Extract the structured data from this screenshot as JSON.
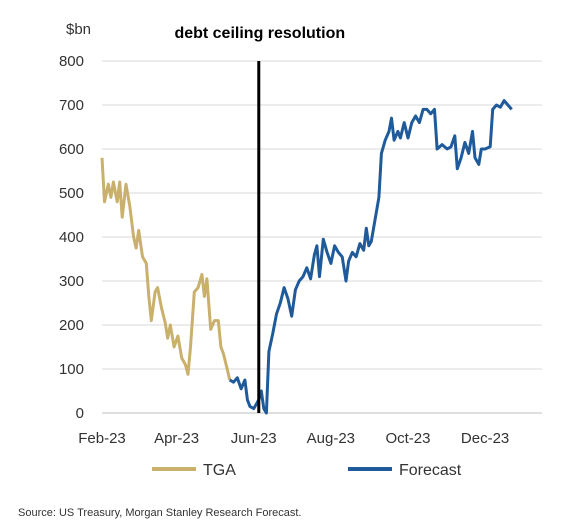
{
  "chart_data": {
    "type": "line",
    "y_unit": "$bn",
    "ylim": [
      0,
      800
    ],
    "y_ticks": [
      0,
      100,
      200,
      300,
      400,
      500,
      600,
      700,
      800
    ],
    "xlim": [
      "2023-02-01",
      "2024-01-15"
    ],
    "x_ticks": [
      {
        "date": "2023-02-01",
        "label": "Feb-23"
      },
      {
        "date": "2023-04-01",
        "label": "Apr-23"
      },
      {
        "date": "2023-06-01",
        "label": "Jun-23"
      },
      {
        "date": "2023-08-01",
        "label": "Aug-23"
      },
      {
        "date": "2023-10-01",
        "label": "Oct-23"
      },
      {
        "date": "2023-12-01",
        "label": "Dec-23"
      }
    ],
    "grid": "horizontal",
    "annotation": {
      "label": "debt ceiling resolution",
      "date": "2023-06-05"
    },
    "legend_position": "bottom",
    "series": [
      {
        "name": "TGA",
        "color": "#c9b06d",
        "points": [
          [
            "2023-02-01",
            580
          ],
          [
            "2023-02-03",
            480
          ],
          [
            "2023-02-06",
            520
          ],
          [
            "2023-02-08",
            490
          ],
          [
            "2023-02-10",
            525
          ],
          [
            "2023-02-13",
            480
          ],
          [
            "2023-02-15",
            525
          ],
          [
            "2023-02-17",
            445
          ],
          [
            "2023-02-20",
            520
          ],
          [
            "2023-02-23",
            470
          ],
          [
            "2023-02-26",
            400
          ],
          [
            "2023-02-28",
            375
          ],
          [
            "2023-03-02",
            415
          ],
          [
            "2023-03-05",
            355
          ],
          [
            "2023-03-08",
            340
          ],
          [
            "2023-03-10",
            265
          ],
          [
            "2023-03-12",
            210
          ],
          [
            "2023-03-15",
            275
          ],
          [
            "2023-03-17",
            285
          ],
          [
            "2023-03-20",
            240
          ],
          [
            "2023-03-23",
            205
          ],
          [
            "2023-03-25",
            170
          ],
          [
            "2023-03-27",
            200
          ],
          [
            "2023-03-30",
            150
          ],
          [
            "2023-04-02",
            175
          ],
          [
            "2023-04-05",
            125
          ],
          [
            "2023-04-08",
            110
          ],
          [
            "2023-04-10",
            88
          ],
          [
            "2023-04-12",
            150
          ],
          [
            "2023-04-15",
            275
          ],
          [
            "2023-04-18",
            285
          ],
          [
            "2023-04-21",
            315
          ],
          [
            "2023-04-23",
            265
          ],
          [
            "2023-04-25",
            305
          ],
          [
            "2023-04-28",
            190
          ],
          [
            "2023-05-01",
            210
          ],
          [
            "2023-05-04",
            210
          ],
          [
            "2023-05-06",
            150
          ],
          [
            "2023-05-08",
            135
          ],
          [
            "2023-05-11",
            100
          ],
          [
            "2023-05-13",
            75
          ]
        ]
      },
      {
        "name": "Forecast",
        "color": "#1f5b9a",
        "points": [
          [
            "2023-05-13",
            75
          ],
          [
            "2023-05-16",
            70
          ],
          [
            "2023-05-19",
            80
          ],
          [
            "2023-05-22",
            55
          ],
          [
            "2023-05-25",
            75
          ],
          [
            "2023-05-27",
            30
          ],
          [
            "2023-05-29",
            15
          ],
          [
            "2023-06-01",
            10
          ],
          [
            "2023-06-03",
            20
          ],
          [
            "2023-06-05",
            30
          ],
          [
            "2023-06-07",
            50
          ],
          [
            "2023-06-09",
            10
          ],
          [
            "2023-06-11",
            0
          ],
          [
            "2023-06-13",
            140
          ],
          [
            "2023-06-16",
            180
          ],
          [
            "2023-06-19",
            225
          ],
          [
            "2023-06-22",
            250
          ],
          [
            "2023-06-25",
            285
          ],
          [
            "2023-06-28",
            260
          ],
          [
            "2023-07-01",
            220
          ],
          [
            "2023-07-04",
            280
          ],
          [
            "2023-07-07",
            300
          ],
          [
            "2023-07-10",
            310
          ],
          [
            "2023-07-13",
            330
          ],
          [
            "2023-07-16",
            305
          ],
          [
            "2023-07-19",
            360
          ],
          [
            "2023-07-21",
            380
          ],
          [
            "2023-07-23",
            310
          ],
          [
            "2023-07-26",
            395
          ],
          [
            "2023-07-29",
            365
          ],
          [
            "2023-08-01",
            340
          ],
          [
            "2023-08-04",
            380
          ],
          [
            "2023-08-07",
            365
          ],
          [
            "2023-08-10",
            355
          ],
          [
            "2023-08-13",
            300
          ],
          [
            "2023-08-15",
            345
          ],
          [
            "2023-08-18",
            365
          ],
          [
            "2023-08-21",
            355
          ],
          [
            "2023-08-24",
            385
          ],
          [
            "2023-08-27",
            370
          ],
          [
            "2023-08-29",
            420
          ],
          [
            "2023-08-31",
            380
          ],
          [
            "2023-09-02",
            390
          ],
          [
            "2023-09-05",
            440
          ],
          [
            "2023-09-08",
            490
          ],
          [
            "2023-09-10",
            590
          ],
          [
            "2023-09-13",
            620
          ],
          [
            "2023-09-16",
            640
          ],
          [
            "2023-09-18",
            670
          ],
          [
            "2023-09-20",
            620
          ],
          [
            "2023-09-23",
            640
          ],
          [
            "2023-09-25",
            625
          ],
          [
            "2023-09-28",
            660
          ],
          [
            "2023-10-01",
            625
          ],
          [
            "2023-10-04",
            660
          ],
          [
            "2023-10-07",
            675
          ],
          [
            "2023-10-10",
            660
          ],
          [
            "2023-10-13",
            690
          ],
          [
            "2023-10-16",
            690
          ],
          [
            "2023-10-19",
            680
          ],
          [
            "2023-10-22",
            690
          ],
          [
            "2023-10-24",
            600
          ],
          [
            "2023-10-28",
            610
          ],
          [
            "2023-11-01",
            600
          ],
          [
            "2023-11-04",
            605
          ],
          [
            "2023-11-07",
            630
          ],
          [
            "2023-11-09",
            555
          ],
          [
            "2023-11-12",
            580
          ],
          [
            "2023-11-15",
            615
          ],
          [
            "2023-11-18",
            590
          ],
          [
            "2023-11-21",
            640
          ],
          [
            "2023-11-23",
            580
          ],
          [
            "2023-11-26",
            565
          ],
          [
            "2023-11-28",
            600
          ],
          [
            "2023-12-01",
            600
          ],
          [
            "2023-12-05",
            605
          ],
          [
            "2023-12-07",
            690
          ],
          [
            "2023-12-10",
            700
          ],
          [
            "2023-12-13",
            695
          ],
          [
            "2023-12-16",
            710
          ],
          [
            "2023-12-19",
            700
          ],
          [
            "2023-12-22",
            690
          ]
        ]
      }
    ]
  },
  "source": "Source: US Treasury, Morgan Stanley Research Forecast."
}
